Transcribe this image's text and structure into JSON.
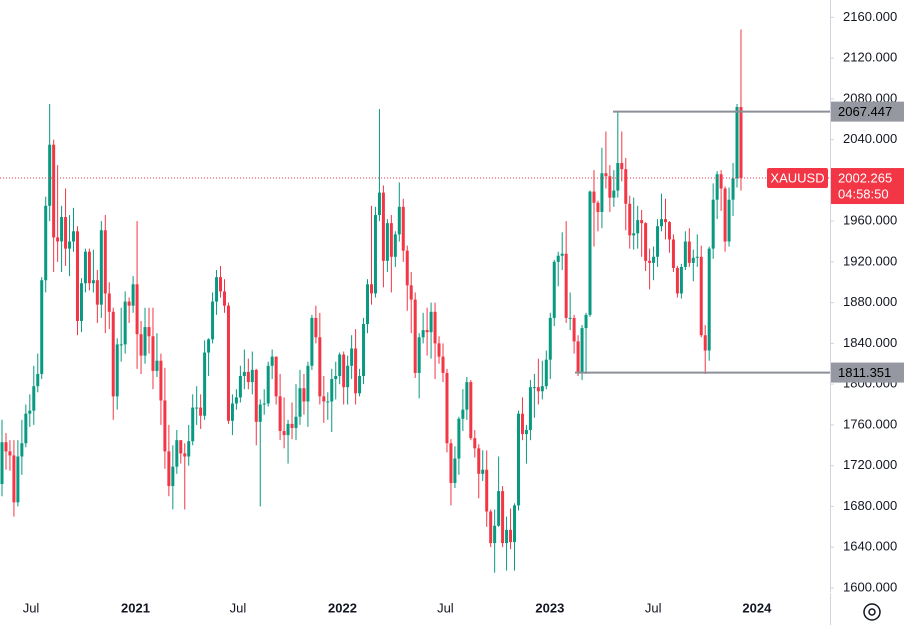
{
  "chart_data": {
    "type": "candlestick",
    "symbol": "XAUUSD",
    "countdown": "04:58:50",
    "up_color": "#089981",
    "down_color": "#f23645",
    "ylim": [
      1596,
      2177
    ],
    "yticks": [
      {
        "value": 1600,
        "label": "1600.000"
      },
      {
        "value": 1640,
        "label": "1640.000"
      },
      {
        "value": 1680,
        "label": "1680.000"
      },
      {
        "value": 1720,
        "label": "1720.000"
      },
      {
        "value": 1760,
        "label": "1760.000"
      },
      {
        "value": 1800,
        "label": "1800.000"
      },
      {
        "value": 1840,
        "label": "1840.000"
      },
      {
        "value": 1880,
        "label": "1880.000"
      },
      {
        "value": 1920,
        "label": "1920.000"
      },
      {
        "value": 1960,
        "label": "1960.000"
      },
      {
        "value": 2000,
        "label": "2000.000"
      },
      {
        "value": 2040,
        "label": "2040.000"
      },
      {
        "value": 2080,
        "label": "2080.000"
      },
      {
        "value": 2120,
        "label": "2120.000"
      },
      {
        "value": 2160,
        "label": "2160.000"
      }
    ],
    "xticks": [
      {
        "value": 7.3,
        "label": "Jul"
      },
      {
        "value": 33.6,
        "label": "2021"
      },
      {
        "value": 59.4,
        "label": "Jul"
      },
      {
        "value": 85.7,
        "label": "2022"
      },
      {
        "value": 111.6,
        "label": "Jul"
      },
      {
        "value": 137.9,
        "label": "2023"
      },
      {
        "value": 163.9,
        "label": "Jul"
      },
      {
        "value": 190,
        "label": "2024"
      }
    ],
    "hlines": [
      2067.447,
      1811.351
    ],
    "open": [
      1702,
      1743,
      1734,
      1730,
      1684,
      1729,
      1742,
      1771,
      1774,
      1798,
      1810,
      1902,
      1975,
      2035,
      1944,
      1940,
      1964,
      1933,
      1940,
      1950,
      1862,
      1899,
      1930,
      1899,
      1902,
      1878,
      1951,
      1889,
      1871,
      1788,
      1839,
      1839,
      1881,
      1877,
      1898,
      1849,
      1828,
      1856,
      1847,
      1813,
      1823,
      1784,
      1734,
      1700,
      1719,
      1745,
      1732,
      1729,
      1744,
      1777,
      1777,
      1769,
      1831,
      1844,
      1881,
      1905,
      1891,
      1877,
      1764,
      1781,
      1787,
      1808,
      1812,
      1802,
      1814,
      1763,
      1780,
      1781,
      1818,
      1827,
      1788,
      1754,
      1750,
      1761,
      1757,
      1768,
      1796,
      1783,
      1818,
      1865,
      1846,
      1788,
      1783,
      1783,
      1805,
      1808,
      1829,
      1797,
      1818,
      1835,
      1791,
      1808,
      1859,
      1898,
      1889,
      1966,
      1988,
      1921,
      1958,
      1925,
      1947,
      1974,
      1931,
      1897,
      1883,
      1811,
      1846,
      1853,
      1851,
      1871,
      1840,
      1827,
      1811,
      1742,
      1703,
      1727,
      1766,
      1775,
      1802,
      1747,
      1737,
      1712,
      1716,
      1675,
      1644,
      1661,
      1695,
      1644,
      1657,
      1645,
      1681,
      1771,
      1751,
      1755,
      1797,
      1797,
      1793,
      1798,
      1824,
      1865,
      1920,
      1926,
      1928,
      1865,
      1865,
      1842,
      1811,
      1855,
      1868,
      1989,
      1978,
      1969,
      2007,
      2004,
      1983,
      1990,
      2017,
      2011,
      1977,
      1946,
      1948,
      1961,
      1958,
      1921,
      1919,
      1925,
      1955,
      1962,
      1959,
      1942,
      1914,
      1889,
      1915,
      1940,
      1919,
      1924,
      1925,
      1848,
      1833,
      1933,
      1981,
      2006,
      1992,
      1940,
      1981,
      2002,
      2072
    ],
    "high": [
      1765,
      1752,
      1745,
      1745,
      1745,
      1765,
      1780,
      1790,
      1818,
      1830,
      1905,
      1984,
      2075,
      2040,
      2015,
      1975,
      1992,
      1966,
      1973,
      1955,
      1904,
      1933,
      1933,
      1932,
      1912,
      1960,
      1966,
      1900,
      1875,
      1845,
      1875,
      1891,
      1885,
      1906,
      1960,
      1862,
      1875,
      1875,
      1875,
      1850,
      1830,
      1816,
      1760,
      1740,
      1755,
      1745,
      1742,
      1760,
      1790,
      1798,
      1790,
      1843,
      1845,
      1890,
      1912,
      1916,
      1903,
      1880,
      1790,
      1795,
      1818,
      1834,
      1825,
      1832,
      1815,
      1785,
      1795,
      1822,
      1834,
      1827,
      1810,
      1787,
      1765,
      1782,
      1800,
      1814,
      1810,
      1822,
      1868,
      1877,
      1870,
      1808,
      1792,
      1815,
      1822,
      1831,
      1832,
      1828,
      1848,
      1854,
      1815,
      1865,
      1903,
      1975,
      1974,
      2070,
      1995,
      1962,
      1966,
      1950,
      1998,
      1982,
      1936,
      1910,
      1890,
      1850,
      1870,
      1875,
      1880,
      1880,
      1847,
      1840,
      1815,
      1746,
      1739,
      1768,
      1795,
      1807,
      1804,
      1755,
      1741,
      1735,
      1735,
      1677,
      1677,
      1729,
      1700,
      1670,
      1678,
      1683,
      1774,
      1787,
      1760,
      1804,
      1810,
      1825,
      1823,
      1833,
      1870,
      1922,
      1930,
      1949,
      1960,
      1890,
      1868,
      1848,
      1858,
      1870,
      1990,
      2010,
      1980,
      2032,
      2048,
      2015,
      2010,
      2067,
      2048,
      2022,
      1985,
      1983,
      1975,
      1971,
      1959,
      1933,
      1935,
      1962,
      1987,
      1982,
      1960,
      1947,
      1916,
      1918,
      1950,
      1953,
      1932,
      1947,
      1936,
      1858,
      1935,
      1997,
      2009,
      2010,
      1994,
      1993,
      2017,
      2075,
      2148
    ],
    "low": [
      1690,
      1716,
      1715,
      1670,
      1680,
      1711,
      1738,
      1758,
      1760,
      1792,
      1805,
      1890,
      1960,
      1910,
      1920,
      1910,
      1916,
      1906,
      1930,
      1848,
      1851,
      1890,
      1892,
      1890,
      1860,
      1865,
      1850,
      1854,
      1765,
      1775,
      1822,
      1830,
      1860,
      1870,
      1815,
      1810,
      1820,
      1830,
      1795,
      1807,
      1760,
      1717,
      1690,
      1677,
      1712,
      1722,
      1677,
      1720,
      1740,
      1760,
      1756,
      1765,
      1808,
      1840,
      1868,
      1885,
      1870,
      1761,
      1750,
      1775,
      1782,
      1795,
      1795,
      1790,
      1740,
      1680,
      1770,
      1778,
      1805,
      1780,
      1745,
      1737,
      1722,
      1746,
      1745,
      1760,
      1770,
      1758,
      1814,
      1840,
      1780,
      1762,
      1765,
      1753,
      1785,
      1800,
      1780,
      1780,
      1805,
      1780,
      1788,
      1800,
      1850,
      1878,
      1885,
      1960,
      1895,
      1910,
      1890,
      1915,
      1940,
      1920,
      1872,
      1850,
      1806,
      1786,
      1840,
      1828,
      1825,
      1805,
      1820,
      1802,
      1733,
      1681,
      1698,
      1711,
      1754,
      1765,
      1745,
      1728,
      1688,
      1705,
      1660,
      1640,
      1615,
      1660,
      1640,
      1617,
      1638,
      1617,
      1676,
      1745,
      1722,
      1745,
      1767,
      1780,
      1785,
      1795,
      1805,
      1857,
      1896,
      1912,
      1860,
      1853,
      1830,
      1808,
      1804,
      1810,
      1866,
      1935,
      1950,
      1953,
      1992,
      1969,
      1974,
      1983,
      1999,
      1951,
      1933,
      1932,
      1933,
      1925,
      1911,
      1893,
      1902,
      1915,
      1950,
      1942,
      1929,
      1910,
      1885,
      1884,
      1912,
      1915,
      1901,
      1915,
      1846,
      1810,
      1823,
      1923,
      1962,
      1970,
      1930,
      1935,
      1965,
      1993,
      1990
    ],
    "close": [
      1743,
      1734,
      1730,
      1684,
      1729,
      1742,
      1771,
      1774,
      1798,
      1810,
      1902,
      1975,
      2035,
      1944,
      1940,
      1964,
      1933,
      1940,
      1950,
      1862,
      1899,
      1930,
      1899,
      1902,
      1878,
      1951,
      1889,
      1871,
      1788,
      1839,
      1839,
      1881,
      1877,
      1898,
      1849,
      1828,
      1856,
      1847,
      1813,
      1823,
      1784,
      1734,
      1700,
      1719,
      1745,
      1732,
      1729,
      1744,
      1777,
      1777,
      1769,
      1831,
      1844,
      1881,
      1905,
      1891,
      1877,
      1764,
      1781,
      1787,
      1808,
      1812,
      1802,
      1814,
      1763,
      1780,
      1781,
      1818,
      1827,
      1788,
      1754,
      1750,
      1761,
      1757,
      1768,
      1796,
      1783,
      1818,
      1865,
      1846,
      1788,
      1783,
      1783,
      1805,
      1808,
      1829,
      1797,
      1818,
      1835,
      1791,
      1808,
      1859,
      1898,
      1889,
      1966,
      1988,
      1921,
      1958,
      1925,
      1947,
      1974,
      1931,
      1897,
      1883,
      1811,
      1846,
      1853,
      1851,
      1871,
      1840,
      1827,
      1811,
      1742,
      1703,
      1727,
      1766,
      1775,
      1802,
      1747,
      1737,
      1712,
      1716,
      1675,
      1644,
      1661,
      1695,
      1644,
      1657,
      1645,
      1681,
      1771,
      1751,
      1755,
      1797,
      1797,
      1793,
      1798,
      1824,
      1865,
      1920,
      1926,
      1928,
      1865,
      1865,
      1842,
      1811,
      1855,
      1868,
      1989,
      1978,
      1969,
      2007,
      2004,
      1983,
      1990,
      2017,
      2011,
      1977,
      1946,
      1948,
      1961,
      1958,
      1921,
      1919,
      1925,
      1955,
      1962,
      1959,
      1942,
      1914,
      1889,
      1915,
      1940,
      1919,
      1924,
      1925,
      1848,
      1833,
      1933,
      1981,
      2006,
      1992,
      1940,
      1981,
      2002,
      2072,
      2002.265
    ]
  }
}
